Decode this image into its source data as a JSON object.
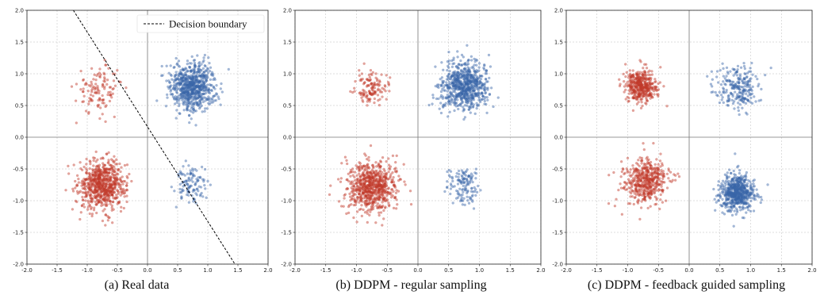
{
  "colors": {
    "red": "#c0392b",
    "blue": "#3a67a8",
    "grid": "#bdbdbd",
    "axis_line": "#777777",
    "boundary": "#000000"
  },
  "chart_data": [
    {
      "type": "scatter",
      "caption": "(a) Real data",
      "xlim": [
        -2.0,
        2.0
      ],
      "ylim": [
        -2.0,
        2.0
      ],
      "x_ticks": [
        "-2.0",
        "-1.5",
        "-1.0",
        "-0.5",
        "0.0",
        "0.5",
        "1.0",
        "1.5",
        "2.0"
      ],
      "y_ticks": [
        "2.0",
        "1.5",
        "1.0",
        "0.5",
        "0.0",
        "-0.5",
        "-1.0",
        "-1.5",
        "-2.0"
      ],
      "grid": true,
      "legend": {
        "position": "top-right",
        "label": "Decision boundary"
      },
      "decision_boundary": [
        [
          -1.23,
          2.0
        ],
        [
          1.45,
          -2.0
        ]
      ],
      "series": [
        {
          "color": "red",
          "clusters": [
            {
              "center": [
                -0.8,
                0.75
              ],
              "spread": 0.19,
              "count": 120
            },
            {
              "center": [
                -0.75,
                -0.75
              ],
              "spread": 0.19,
              "count": 720
            }
          ]
        },
        {
          "color": "blue",
          "clusters": [
            {
              "center": [
                0.75,
                0.8
              ],
              "spread": 0.19,
              "count": 720
            },
            {
              "center": [
                0.72,
                -0.75
              ],
              "spread": 0.13,
              "count": 110
            }
          ]
        }
      ]
    },
    {
      "type": "scatter",
      "caption": "(b) DDPM - regular sampling",
      "xlim": [
        -2.0,
        2.0
      ],
      "ylim": [
        -2.0,
        2.0
      ],
      "x_ticks": [
        "-2.0",
        "-1.5",
        "-1.0",
        "-0.5",
        "0.0",
        "0.5",
        "1.0",
        "1.5",
        "2.0"
      ],
      "y_ticks": [
        "2.0",
        "1.5",
        "1.0",
        "0.5",
        "0.0",
        "-0.5",
        "-1.0",
        "-1.5",
        "-2.0"
      ],
      "grid": true,
      "series": [
        {
          "color": "red",
          "clusters": [
            {
              "center": [
                -0.75,
                0.78
              ],
              "spread": 0.12,
              "count": 130
            },
            {
              "center": [
                -0.75,
                -0.78
              ],
              "spread": 0.2,
              "count": 720
            }
          ]
        },
        {
          "color": "blue",
          "clusters": [
            {
              "center": [
                0.75,
                0.8
              ],
              "spread": 0.19,
              "count": 720
            },
            {
              "center": [
                0.75,
                -0.75
              ],
              "spread": 0.13,
              "count": 130
            }
          ]
        }
      ]
    },
    {
      "type": "scatter",
      "caption": "(c) DDPM - feedback guided sampling",
      "xlim": [
        -2.0,
        2.0
      ],
      "ylim": [
        -2.0,
        2.0
      ],
      "x_ticks": [
        "-2.0",
        "-1.5",
        "-1.0",
        "-0.5",
        "0.0",
        "0.5",
        "1.0",
        "1.5",
        "2.0"
      ],
      "y_ticks": [
        "2.0",
        "1.5",
        "1.0",
        "0.5",
        "0.0",
        "-0.5",
        "-1.0",
        "-1.5",
        "-2.0"
      ],
      "grid": true,
      "series": [
        {
          "color": "red",
          "clusters": [
            {
              "center": [
                -0.78,
                0.8
              ],
              "spread": 0.13,
              "count": 420
            },
            {
              "center": [
                -0.7,
                -0.7
              ],
              "spread": 0.18,
              "count": 480
            }
          ]
        },
        {
          "color": "blue",
          "clusters": [
            {
              "center": [
                0.78,
                0.8
              ],
              "spread": 0.18,
              "count": 240
            },
            {
              "center": [
                0.78,
                -0.88
              ],
              "spread": 0.14,
              "count": 620
            }
          ]
        }
      ]
    }
  ]
}
